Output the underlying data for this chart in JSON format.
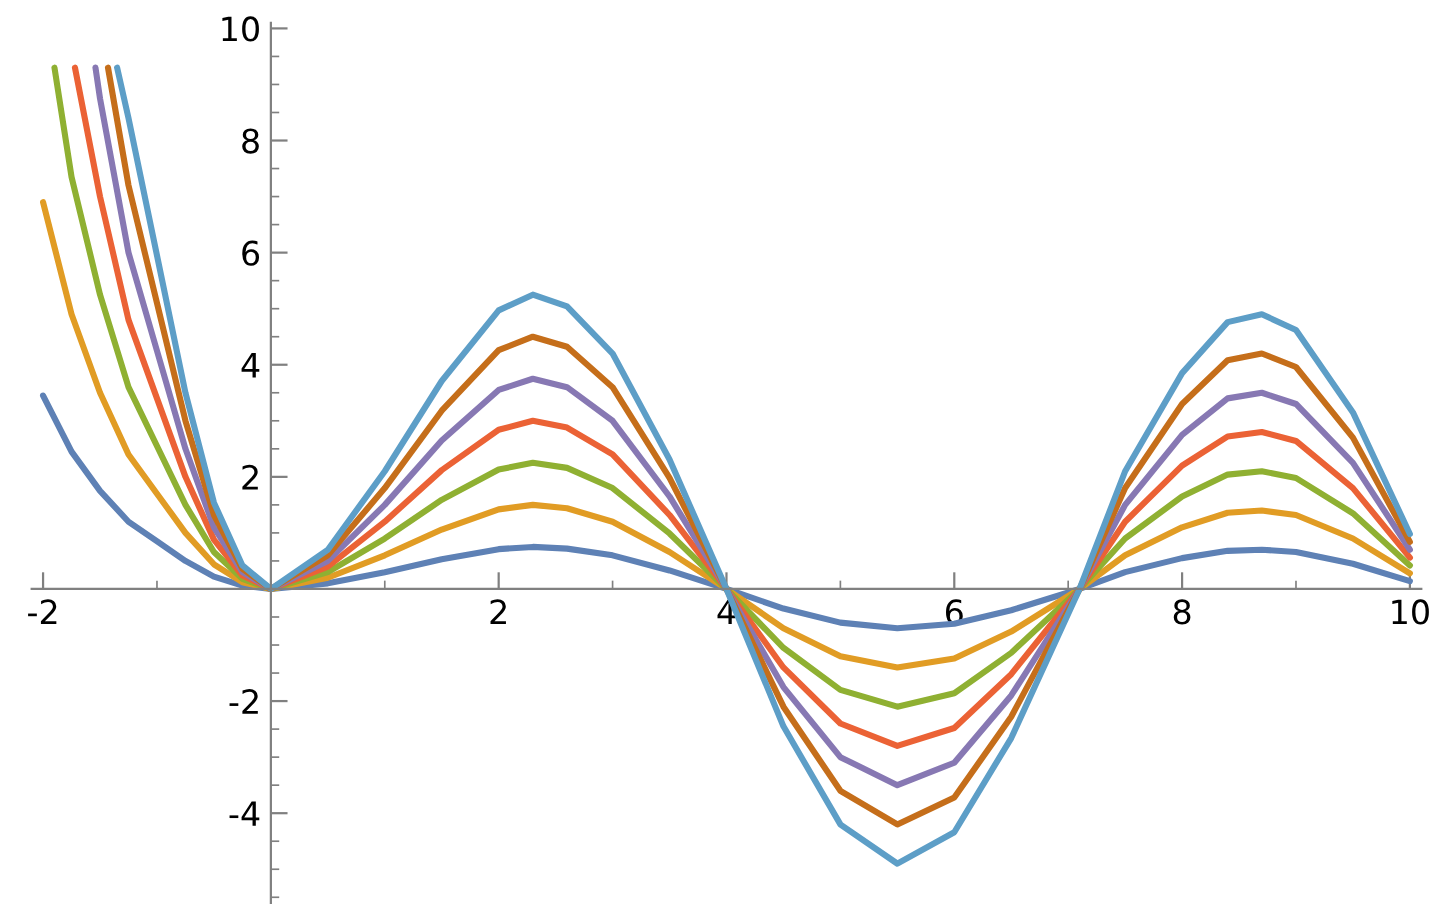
{
  "chart_data": {
    "type": "line",
    "xlim": [
      -2.1,
      10.1
    ],
    "ylim": [
      -5.6,
      10.1
    ],
    "xticks": [
      -2,
      2,
      4,
      6,
      8,
      10
    ],
    "yticks": [
      -4,
      -2,
      2,
      4,
      6,
      8,
      10
    ],
    "grid": false,
    "legend": false,
    "marker": "none",
    "line_style": "solid",
    "series": [
      {
        "color": "#5e81b5",
        "x": [
          -2,
          -1.75,
          -1.5,
          -1.25,
          -1,
          -0.75,
          -0.5,
          -0.25,
          0,
          0.5,
          1,
          1.5,
          2,
          2.3,
          2.6,
          3,
          3.5,
          4,
          4.5,
          5,
          5.5,
          6,
          6.5,
          7.1,
          7.5,
          8,
          8.4,
          8.7,
          9,
          9.5,
          10
        ],
        "values": [
          3.45,
          2.45,
          1.75,
          1.2,
          0.85,
          0.5,
          0.22,
          0.06,
          0,
          0.1,
          0.3,
          0.53,
          0.71,
          0.75,
          0.72,
          0.6,
          0.33,
          0,
          -0.35,
          -0.6,
          -0.7,
          -0.62,
          -0.38,
          0,
          0.3,
          0.55,
          0.68,
          0.7,
          0.66,
          0.45,
          0.14
        ]
      },
      {
        "color": "#e19c24",
        "x": [
          -2,
          -1.75,
          -1.5,
          -1.25,
          -1,
          -0.75,
          -0.5,
          -0.25,
          0,
          0.5,
          1,
          1.5,
          2,
          2.3,
          2.6,
          3,
          3.5,
          4,
          4.5,
          5,
          5.5,
          6,
          6.5,
          7.1,
          7.5,
          8,
          8.4,
          8.7,
          9,
          9.5,
          10
        ],
        "values": [
          6.9,
          4.9,
          3.5,
          2.4,
          1.7,
          1.0,
          0.44,
          0.12,
          0,
          0.2,
          0.6,
          1.06,
          1.42,
          1.5,
          1.44,
          1.2,
          0.66,
          0,
          -0.7,
          -1.2,
          -1.4,
          -1.24,
          -0.76,
          0,
          0.6,
          1.1,
          1.36,
          1.4,
          1.32,
          0.9,
          0.28
        ]
      },
      {
        "color": "#8fb032",
        "x": [
          -1.9,
          -1.75,
          -1.5,
          -1.25,
          -1,
          -0.75,
          -0.5,
          -0.25,
          0,
          0.5,
          1,
          1.5,
          2,
          2.3,
          2.6,
          3,
          3.5,
          4,
          4.5,
          5,
          5.5,
          6,
          6.5,
          7.1,
          7.5,
          8,
          8.4,
          8.7,
          9,
          9.5,
          10
        ],
        "values": [
          9.3,
          7.35,
          5.25,
          3.6,
          2.55,
          1.5,
          0.66,
          0.18,
          0,
          0.3,
          0.9,
          1.59,
          2.13,
          2.25,
          2.16,
          1.8,
          0.99,
          0,
          -1.05,
          -1.8,
          -2.1,
          -1.86,
          -1.14,
          0,
          0.9,
          1.65,
          2.04,
          2.1,
          1.98,
          1.35,
          0.42
        ]
      },
      {
        "color": "#eb6235",
        "x": [
          -1.72,
          -1.5,
          -1.25,
          -1,
          -0.75,
          -0.5,
          -0.25,
          0,
          0.5,
          1,
          1.5,
          2,
          2.3,
          2.6,
          3,
          3.5,
          4,
          4.5,
          5,
          5.5,
          6,
          6.5,
          7.1,
          7.5,
          8,
          8.4,
          8.7,
          9,
          9.5,
          10
        ],
        "values": [
          9.3,
          7.0,
          4.8,
          3.4,
          2.0,
          0.88,
          0.24,
          0,
          0.4,
          1.2,
          2.12,
          2.84,
          3.0,
          2.88,
          2.4,
          1.32,
          0,
          -1.4,
          -2.4,
          -2.8,
          -2.48,
          -1.52,
          0,
          1.2,
          2.2,
          2.72,
          2.8,
          2.64,
          1.8,
          0.56
        ]
      },
      {
        "color": "#8778b3",
        "x": [
          -1.54,
          -1.5,
          -1.25,
          -1,
          -0.75,
          -0.5,
          -0.25,
          0,
          0.5,
          1,
          1.5,
          2,
          2.3,
          2.6,
          3,
          3.5,
          4,
          4.5,
          5,
          5.5,
          6,
          6.5,
          7.1,
          7.5,
          8,
          8.4,
          8.7,
          9,
          9.5,
          10
        ],
        "values": [
          9.3,
          8.75,
          6.0,
          4.25,
          2.5,
          1.1,
          0.3,
          0,
          0.5,
          1.5,
          2.65,
          3.55,
          3.75,
          3.6,
          3.0,
          1.65,
          0,
          -1.75,
          -3.0,
          -3.5,
          -3.1,
          -1.9,
          0,
          1.5,
          2.75,
          3.4,
          3.5,
          3.3,
          2.25,
          0.7
        ]
      },
      {
        "color": "#c56e1a",
        "x": [
          -1.43,
          -1.25,
          -1,
          -0.75,
          -0.5,
          -0.25,
          0,
          0.5,
          1,
          1.5,
          2,
          2.3,
          2.6,
          3,
          3.5,
          4,
          4.5,
          5,
          5.5,
          6,
          6.5,
          7.1,
          7.5,
          8,
          8.4,
          8.7,
          9,
          9.5,
          10
        ],
        "values": [
          9.3,
          7.2,
          5.1,
          3.0,
          1.32,
          0.36,
          0,
          0.6,
          1.8,
          3.18,
          4.26,
          4.5,
          4.32,
          3.6,
          1.98,
          0,
          -2.1,
          -3.6,
          -4.2,
          -3.72,
          -2.28,
          0,
          1.8,
          3.3,
          4.08,
          4.2,
          3.96,
          2.7,
          0.84
        ]
      },
      {
        "color": "#5d9ec7",
        "x": [
          -1.35,
          -1.25,
          -1,
          -0.75,
          -0.5,
          -0.25,
          0,
          0.5,
          1,
          1.5,
          2,
          2.3,
          2.6,
          3,
          3.5,
          4,
          4.5,
          5,
          5.5,
          6,
          6.5,
          7.1,
          7.5,
          8,
          8.4,
          8.7,
          9,
          9.5,
          10
        ],
        "values": [
          9.3,
          8.4,
          5.95,
          3.5,
          1.54,
          0.42,
          0,
          0.7,
          2.1,
          3.71,
          4.97,
          5.25,
          5.04,
          4.2,
          2.31,
          0,
          -2.45,
          -4.2,
          -4.9,
          -4.34,
          -2.66,
          0,
          2.1,
          3.85,
          4.76,
          4.9,
          4.62,
          3.15,
          0.98
        ]
      }
    ]
  }
}
